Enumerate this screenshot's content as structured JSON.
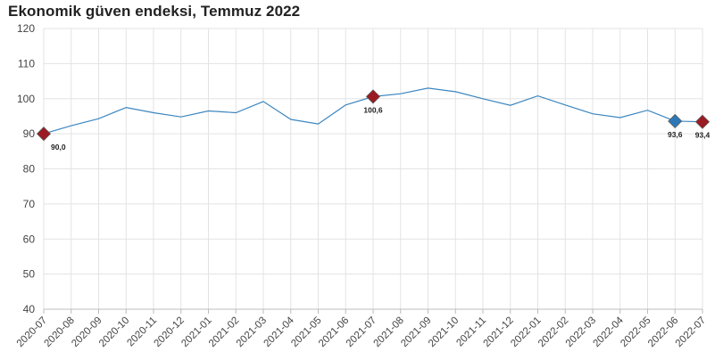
{
  "chart_data": {
    "type": "line",
    "title": "Ekonomik güven endeksi, Temmuz 2022",
    "xlabel": "",
    "ylabel": "",
    "ylim": [
      40,
      120
    ],
    "yticks": [
      "40",
      "50",
      "60",
      "70",
      "80",
      "90",
      "100",
      "110",
      "120"
    ],
    "categories": [
      "2020-07",
      "2020-08",
      "2020-09",
      "2020-10",
      "2020-11",
      "2020-12",
      "2021-01",
      "2021-02",
      "2021-03",
      "2021-04",
      "2021-05",
      "2021-06",
      "2021-07",
      "2021-08",
      "2021-09",
      "2021-10",
      "2021-11",
      "2021-12",
      "2022-01",
      "2022-02",
      "2022-03",
      "2022-04",
      "2022-05",
      "2022-06",
      "2022-07"
    ],
    "series": [
      {
        "values": [
          90.0,
          92.3,
          94.3,
          97.5,
          96.0,
          94.8,
          96.5,
          96.0,
          99.2,
          94.1,
          92.8,
          98.2,
          100.6,
          101.4,
          103.0,
          102.0,
          100.0,
          98.1,
          100.8,
          98.2,
          95.7,
          94.6,
          96.7,
          93.6,
          93.4
        ],
        "color": "#3b86c0"
      }
    ],
    "markers": [
      {
        "index": 0,
        "label": "90,0",
        "color": "#9b1b22"
      },
      {
        "index": 12,
        "label": "100,6",
        "color": "#9b1b22"
      },
      {
        "index": 23,
        "label": "93,6",
        "color": "#2f78b7"
      },
      {
        "index": 24,
        "label": "93,4",
        "color": "#9b1b22"
      }
    ],
    "grid": true,
    "legend": "none"
  }
}
